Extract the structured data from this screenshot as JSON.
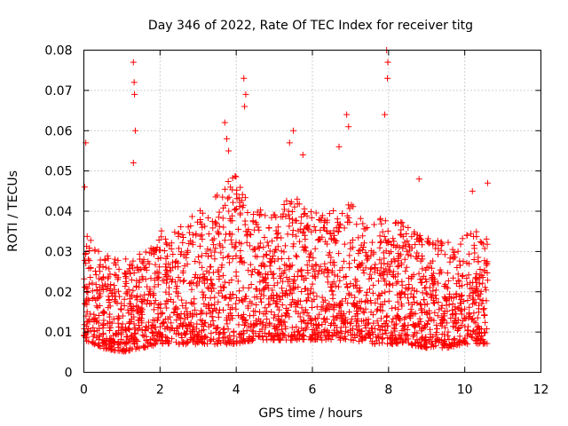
{
  "chart_data": {
    "type": "scatter",
    "title": "Day 346 of 2022, Rate Of TEC Index for receiver titg",
    "xlabel": "GPS time / hours",
    "ylabel": "ROTI / TECUs",
    "xlim": [
      0,
      12
    ],
    "ylim": [
      0,
      0.08
    ],
    "x_ticks": [
      "0",
      "2",
      "4",
      "6",
      "8",
      "10",
      "12"
    ],
    "y_ticks": [
      "0",
      "0.01",
      "0.02",
      "0.03",
      "0.04",
      "0.05",
      "0.06",
      "0.07",
      "0.08"
    ],
    "x_tick_values": [
      0,
      2,
      4,
      6,
      8,
      10,
      12
    ],
    "y_tick_values": [
      0,
      0.01,
      0.02,
      0.03,
      0.04,
      0.05,
      0.06,
      0.07,
      0.08
    ],
    "grid": true,
    "marker": "+",
    "color": "#ff0000",
    "data_x_range": [
      0,
      10.6
    ],
    "notable_points": [
      {
        "x": 0.05,
        "y": 0.057
      },
      {
        "x": 0.02,
        "y": 0.046
      },
      {
        "x": 1.3,
        "y": 0.077
      },
      {
        "x": 1.32,
        "y": 0.072
      },
      {
        "x": 1.33,
        "y": 0.069
      },
      {
        "x": 1.35,
        "y": 0.06
      },
      {
        "x": 1.3,
        "y": 0.052
      },
      {
        "x": 3.7,
        "y": 0.062
      },
      {
        "x": 3.75,
        "y": 0.058
      },
      {
        "x": 3.8,
        "y": 0.055
      },
      {
        "x": 4.2,
        "y": 0.073
      },
      {
        "x": 4.25,
        "y": 0.069
      },
      {
        "x": 4.22,
        "y": 0.066
      },
      {
        "x": 5.5,
        "y": 0.06
      },
      {
        "x": 5.4,
        "y": 0.057
      },
      {
        "x": 5.75,
        "y": 0.054
      },
      {
        "x": 6.9,
        "y": 0.064
      },
      {
        "x": 6.95,
        "y": 0.061
      },
      {
        "x": 6.7,
        "y": 0.056
      },
      {
        "x": 7.95,
        "y": 0.08
      },
      {
        "x": 7.98,
        "y": 0.077
      },
      {
        "x": 7.97,
        "y": 0.073
      },
      {
        "x": 7.9,
        "y": 0.064
      },
      {
        "x": 8.8,
        "y": 0.048
      },
      {
        "x": 10.2,
        "y": 0.045
      },
      {
        "x": 10.6,
        "y": 0.047
      }
    ],
    "bulk_profile": {
      "x": [
        0,
        0.5,
        1,
        1.5,
        2,
        2.5,
        3,
        3.5,
        4,
        4.5,
        5,
        5.5,
        6,
        6.5,
        7,
        7.5,
        8,
        8.5,
        9,
        9.5,
        10,
        10.6
      ],
      "typical_low": [
        0.008,
        0.006,
        0.005,
        0.006,
        0.007,
        0.007,
        0.007,
        0.007,
        0.007,
        0.008,
        0.008,
        0.008,
        0.008,
        0.008,
        0.008,
        0.007,
        0.007,
        0.007,
        0.006,
        0.006,
        0.007,
        0.007
      ],
      "typical_high": [
        0.035,
        0.03,
        0.028,
        0.03,
        0.035,
        0.038,
        0.04,
        0.044,
        0.05,
        0.042,
        0.04,
        0.045,
        0.04,
        0.04,
        0.042,
        0.036,
        0.04,
        0.036,
        0.034,
        0.032,
        0.034,
        0.036
      ]
    }
  }
}
